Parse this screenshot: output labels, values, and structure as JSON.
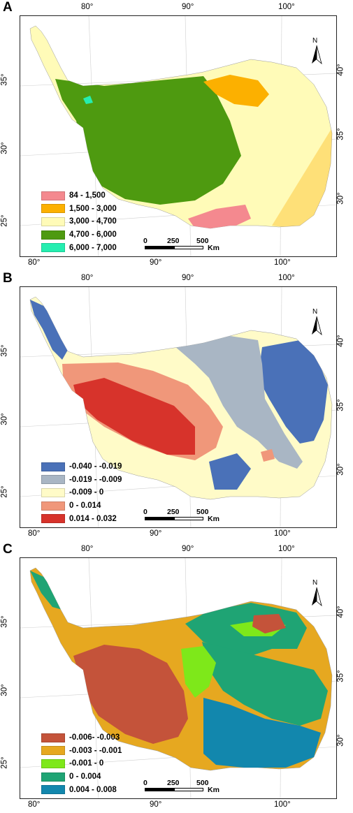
{
  "panels": [
    {
      "letter": "A",
      "bg_color": "#fffbb8",
      "legend": [
        {
          "label": "84 - 1,500",
          "color": "#f4898f"
        },
        {
          "label": "1,500 - 3,000",
          "color": "#fcb000"
        },
        {
          "label": "3,000 - 4,700",
          "color": "#fffbb8"
        },
        {
          "label": "4,700 - 6,000",
          "color": "#4e9a10"
        },
        {
          "label": "6,000 - 7,000",
          "color": "#25eeb0"
        }
      ]
    },
    {
      "letter": "B",
      "bg_color": "#fffbc8",
      "legend": [
        {
          "label": "-0.040 - -0.019",
          "color": "#4a71b8"
        },
        {
          "label": "-0.019 - -0.009",
          "color": "#a9b6c4"
        },
        {
          "label": "-0.009 - 0",
          "color": "#fffbc8"
        },
        {
          "label": "0 - 0.014",
          "color": "#f0977a"
        },
        {
          "label": "0.014 - 0.032",
          "color": "#d7332b"
        }
      ]
    },
    {
      "letter": "C",
      "bg_color": "#e6a820",
      "legend": [
        {
          "label": "-0.006- -0.003",
          "color": "#c4533a"
        },
        {
          "label": "-0.003 - -0.001",
          "color": "#e6a820"
        },
        {
          "label": "-0.001 - 0",
          "color": "#7ee81a"
        },
        {
          "label": "0 - 0.004",
          "color": "#1fa474"
        },
        {
          "label": "0.004 - 0.008",
          "color": "#1287ad"
        }
      ]
    }
  ],
  "axis": {
    "lon_labels": [
      "80°",
      "90°",
      "100°"
    ],
    "left_lat_labels": [
      "35°",
      "30°",
      "25°"
    ],
    "right_lat_labels": [
      "40°",
      "35°",
      "30°"
    ]
  },
  "scale_bar": {
    "ticks": [
      "0",
      "250",
      "500"
    ],
    "unit": "Km"
  },
  "north_arrow": {
    "letter": "N"
  }
}
